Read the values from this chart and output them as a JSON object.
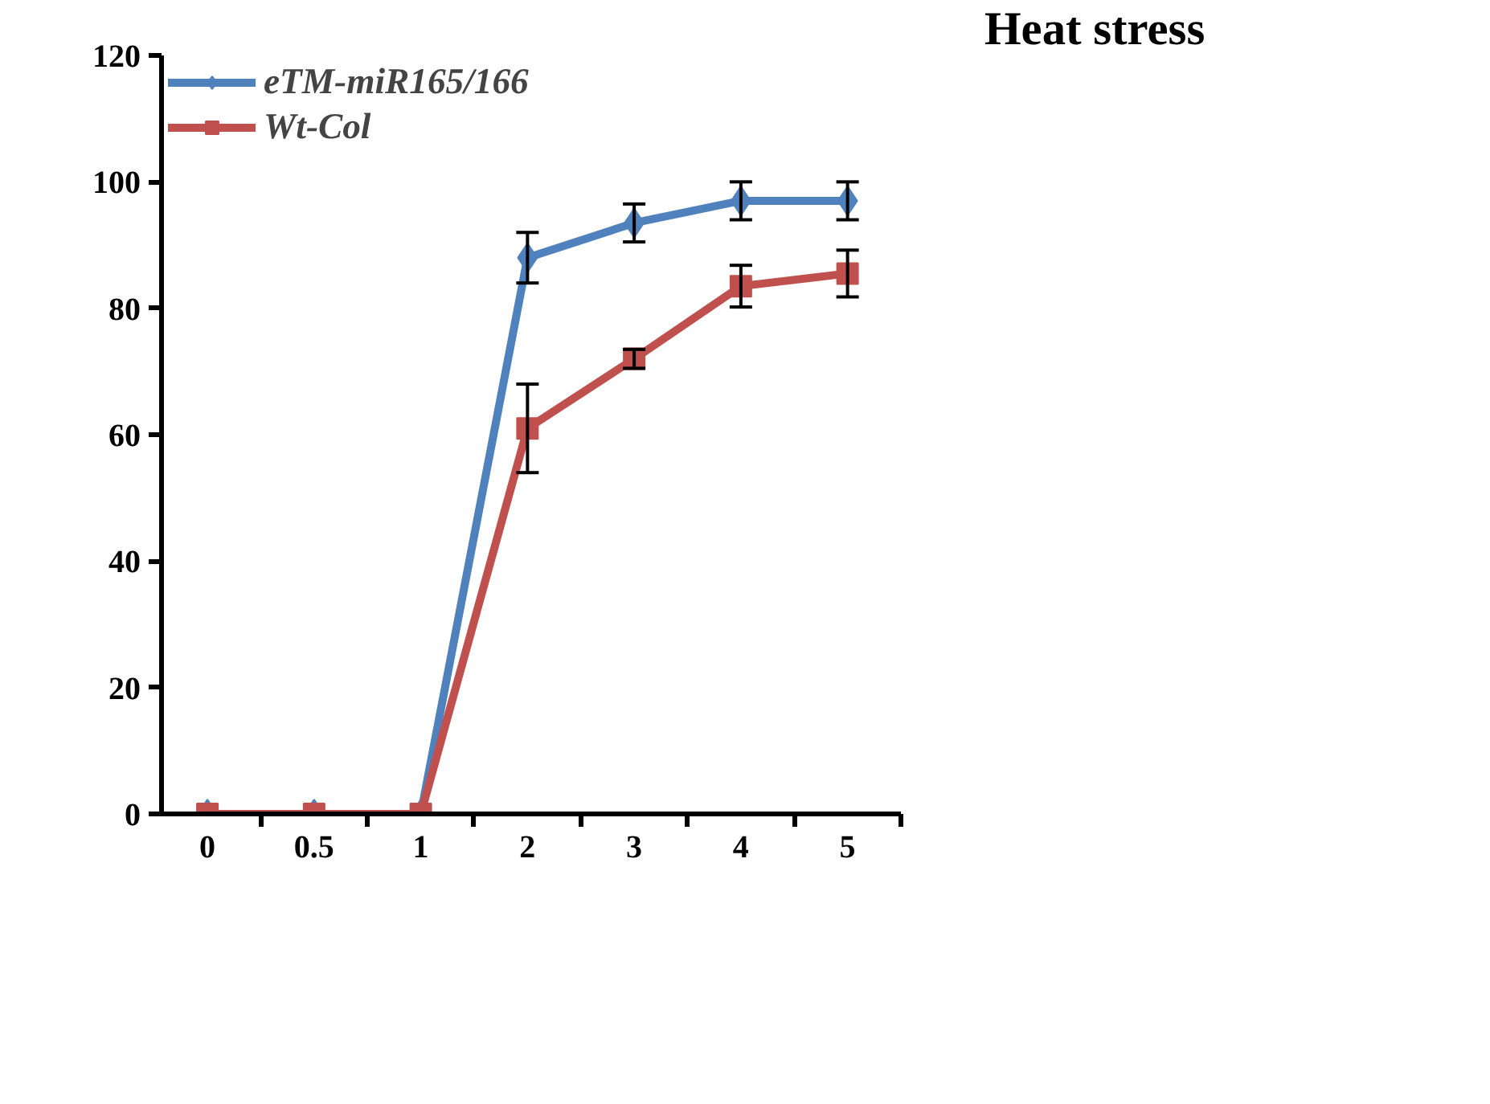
{
  "chart_data": {
    "type": "line",
    "title": "Heat stress",
    "categories": [
      "0",
      "0.5",
      "1",
      "2",
      "3",
      "4",
      "5"
    ],
    "ylim": [
      0,
      120
    ],
    "yticks": [
      0,
      20,
      40,
      60,
      80,
      100,
      120
    ],
    "grid": false,
    "legend": "top left",
    "line_style": "solid",
    "series": [
      {
        "name": "eTM-miR165/166",
        "color": "#4f81bd",
        "marker": "diamond",
        "values": [
          0,
          0,
          0,
          88,
          93.5,
          97,
          97
        ],
        "errors": [
          null,
          null,
          null,
          4,
          3,
          3,
          3
        ]
      },
      {
        "name": "Wt-Col",
        "color": "#c0504d",
        "marker": "square",
        "values": [
          0,
          0,
          0,
          61,
          72,
          83.5,
          85.5
        ],
        "errors": [
          null,
          null,
          null,
          7,
          1.5,
          3.3,
          3.7
        ]
      }
    ]
  }
}
